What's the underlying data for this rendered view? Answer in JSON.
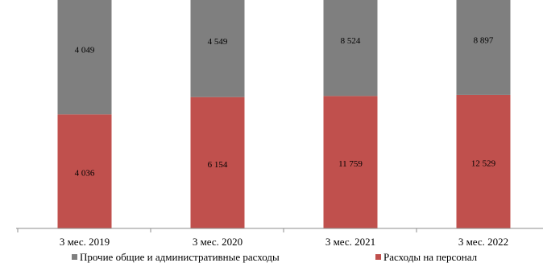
{
  "chart_data": {
    "type": "bar",
    "stacked": true,
    "title": "",
    "xlabel": "",
    "ylabel": "",
    "categories": [
      "3 мес. 2019",
      "3 мес. 2020",
      "3 мес. 2021",
      "3 мес. 2022"
    ],
    "series": [
      {
        "name": "Расходы на персонал",
        "color": "#c0504d",
        "values": [
          4036,
          6154,
          11759,
          12529
        ],
        "labels": [
          "4 036",
          "6 154",
          "11 759",
          "12 529"
        ]
      },
      {
        "name": "Прочие общие и административные расходы",
        "color": "#7f7f7f",
        "values": [
          4049,
          4549,
          8524,
          8897
        ],
        "labels": [
          "4 049",
          "4 549",
          "8 524",
          "8 897"
        ]
      }
    ],
    "stack_share_of_height": true,
    "grid": false,
    "legend_position": "bottom",
    "legend_order": [
      "Прочие общие и административные расходы",
      "Расходы на персонал"
    ]
  }
}
